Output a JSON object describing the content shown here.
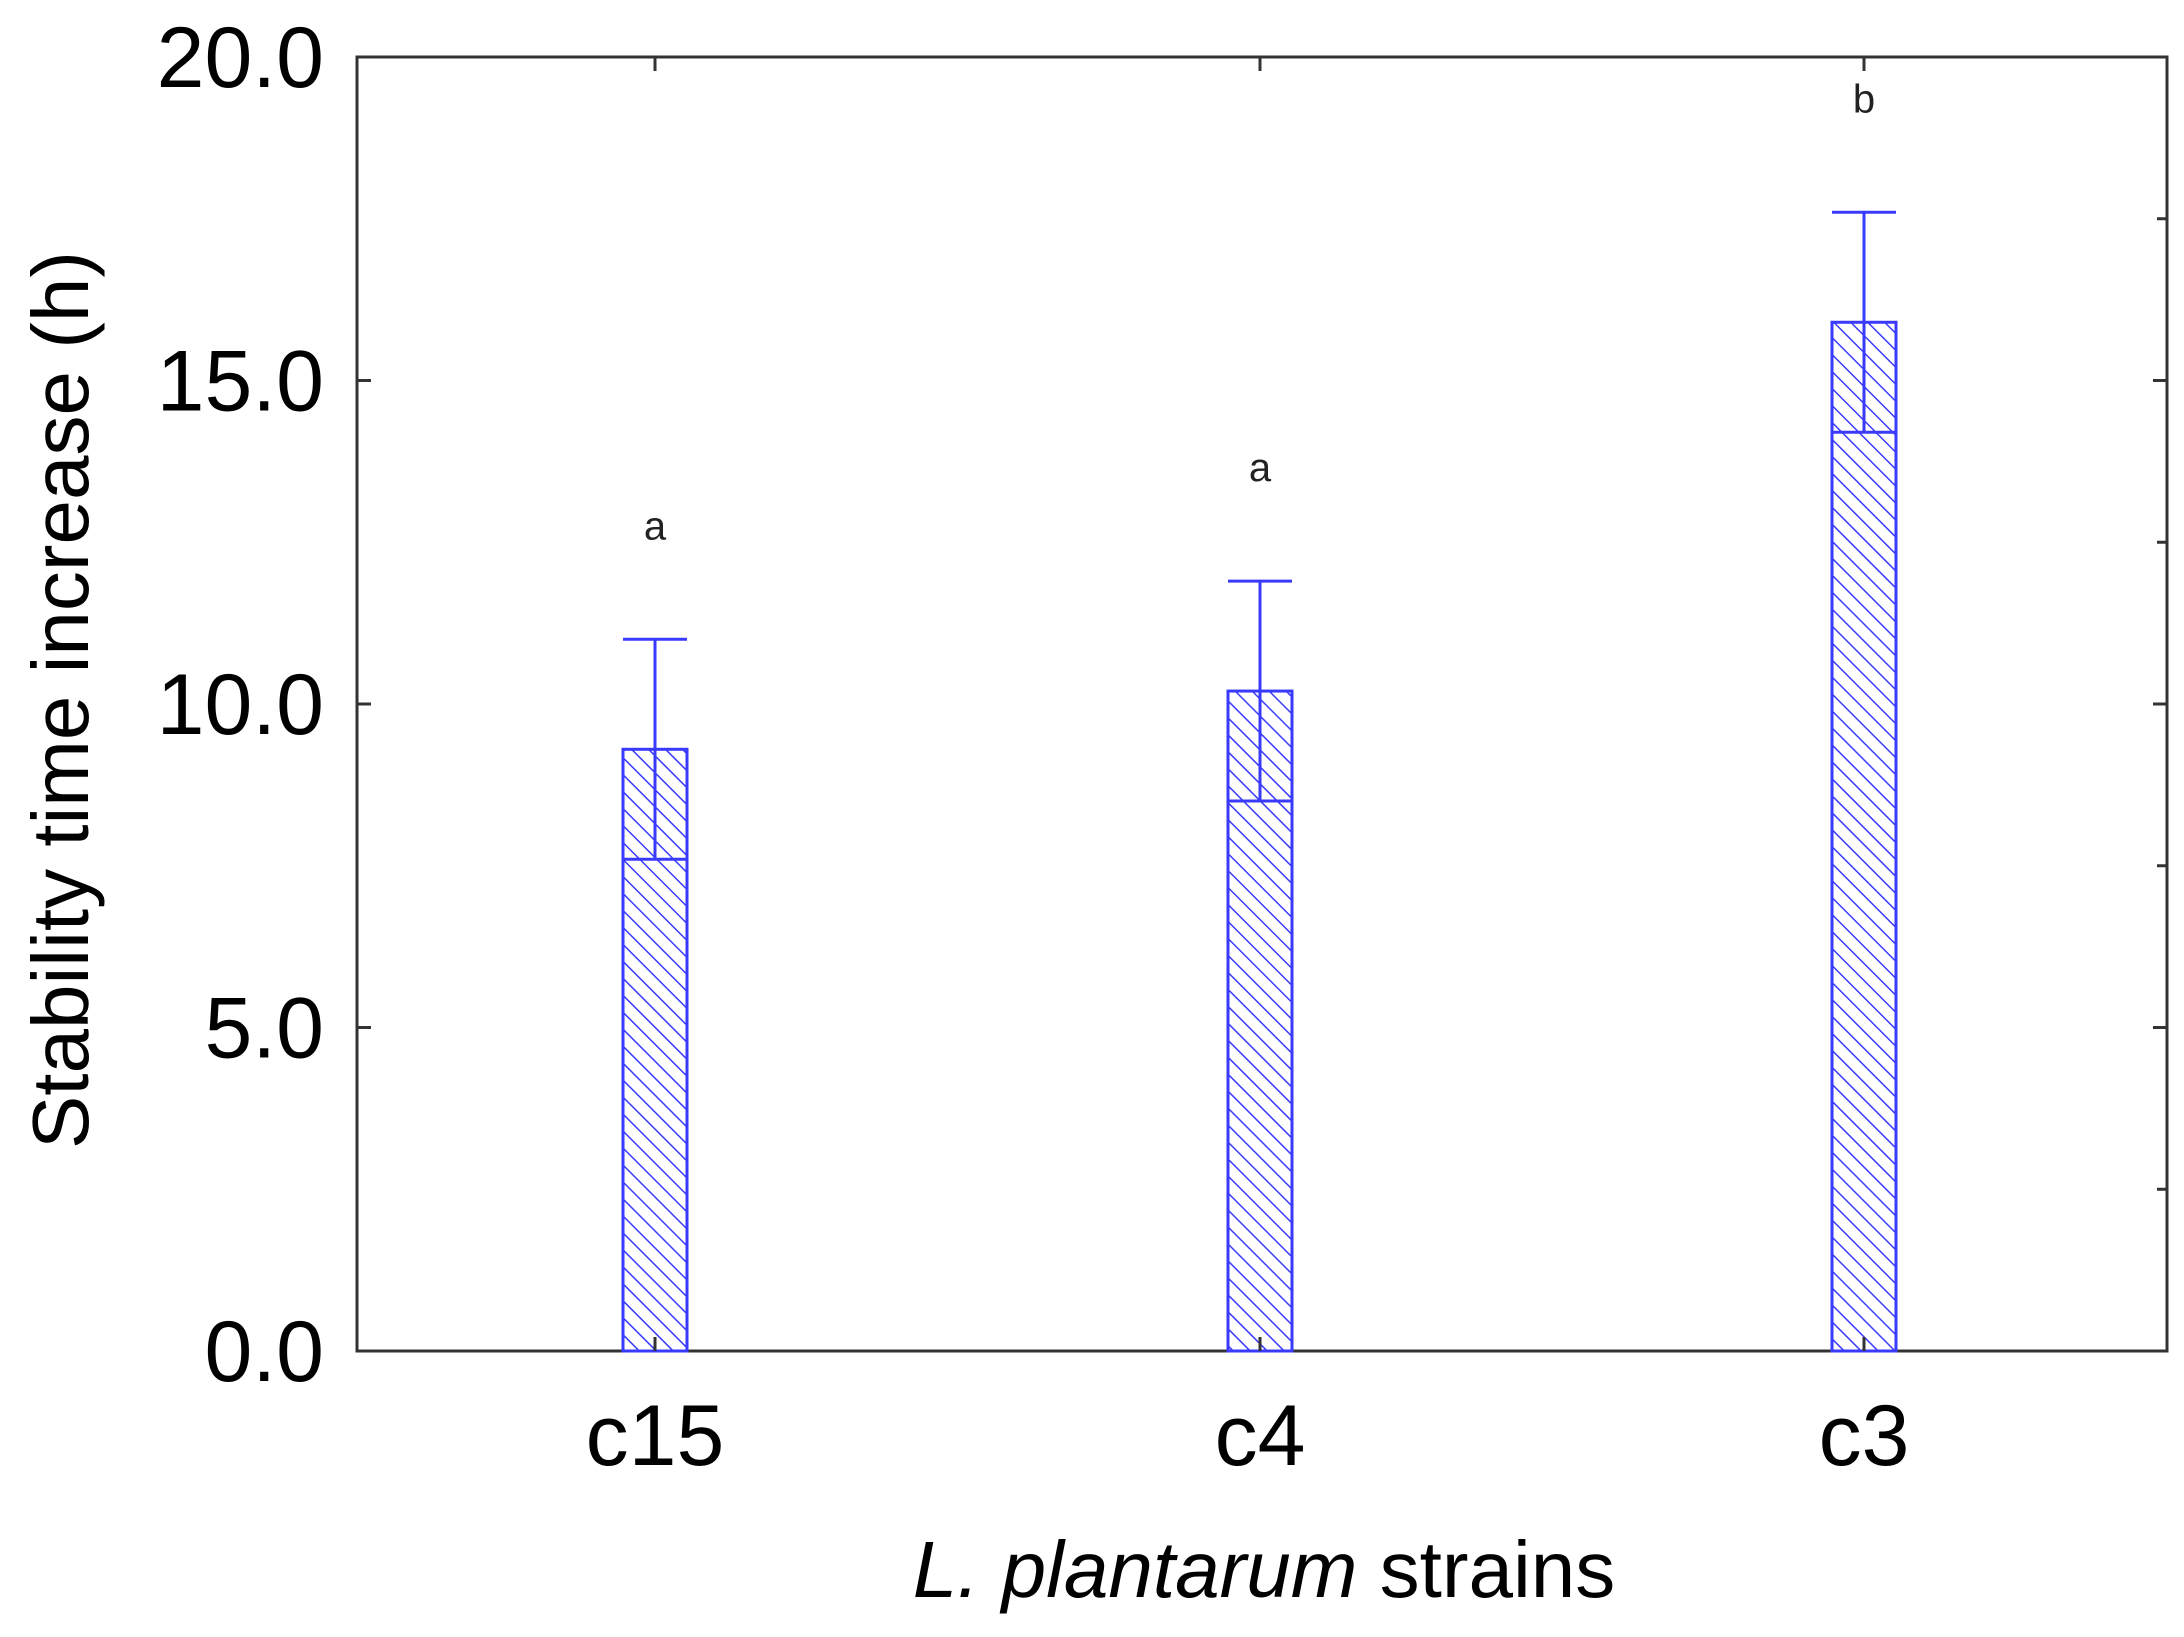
{
  "chart_data": {
    "type": "bar",
    "categories": [
      "c15",
      "c4",
      "c3"
    ],
    "series": [
      {
        "values": [
          9.3,
          10.2,
          15.9
        ],
        "error_upper": [
          11.0,
          11.9,
          17.6
        ],
        "error_lower": [
          7.6,
          8.5,
          14.2
        ]
      }
    ],
    "significance_labels": [
      "a",
      "a",
      "b"
    ],
    "ylabel": "Stability time increase (h)",
    "xlabel_italic": "L. plantarum",
    "xlabel_rest": "strains",
    "ylim": [
      0,
      20
    ],
    "yticks": [
      "0.0",
      "5.0",
      "10.0",
      "15.0",
      "20.0"
    ],
    "grid": false,
    "bar_color": "#3a3aff",
    "hatch": "diagonal"
  }
}
